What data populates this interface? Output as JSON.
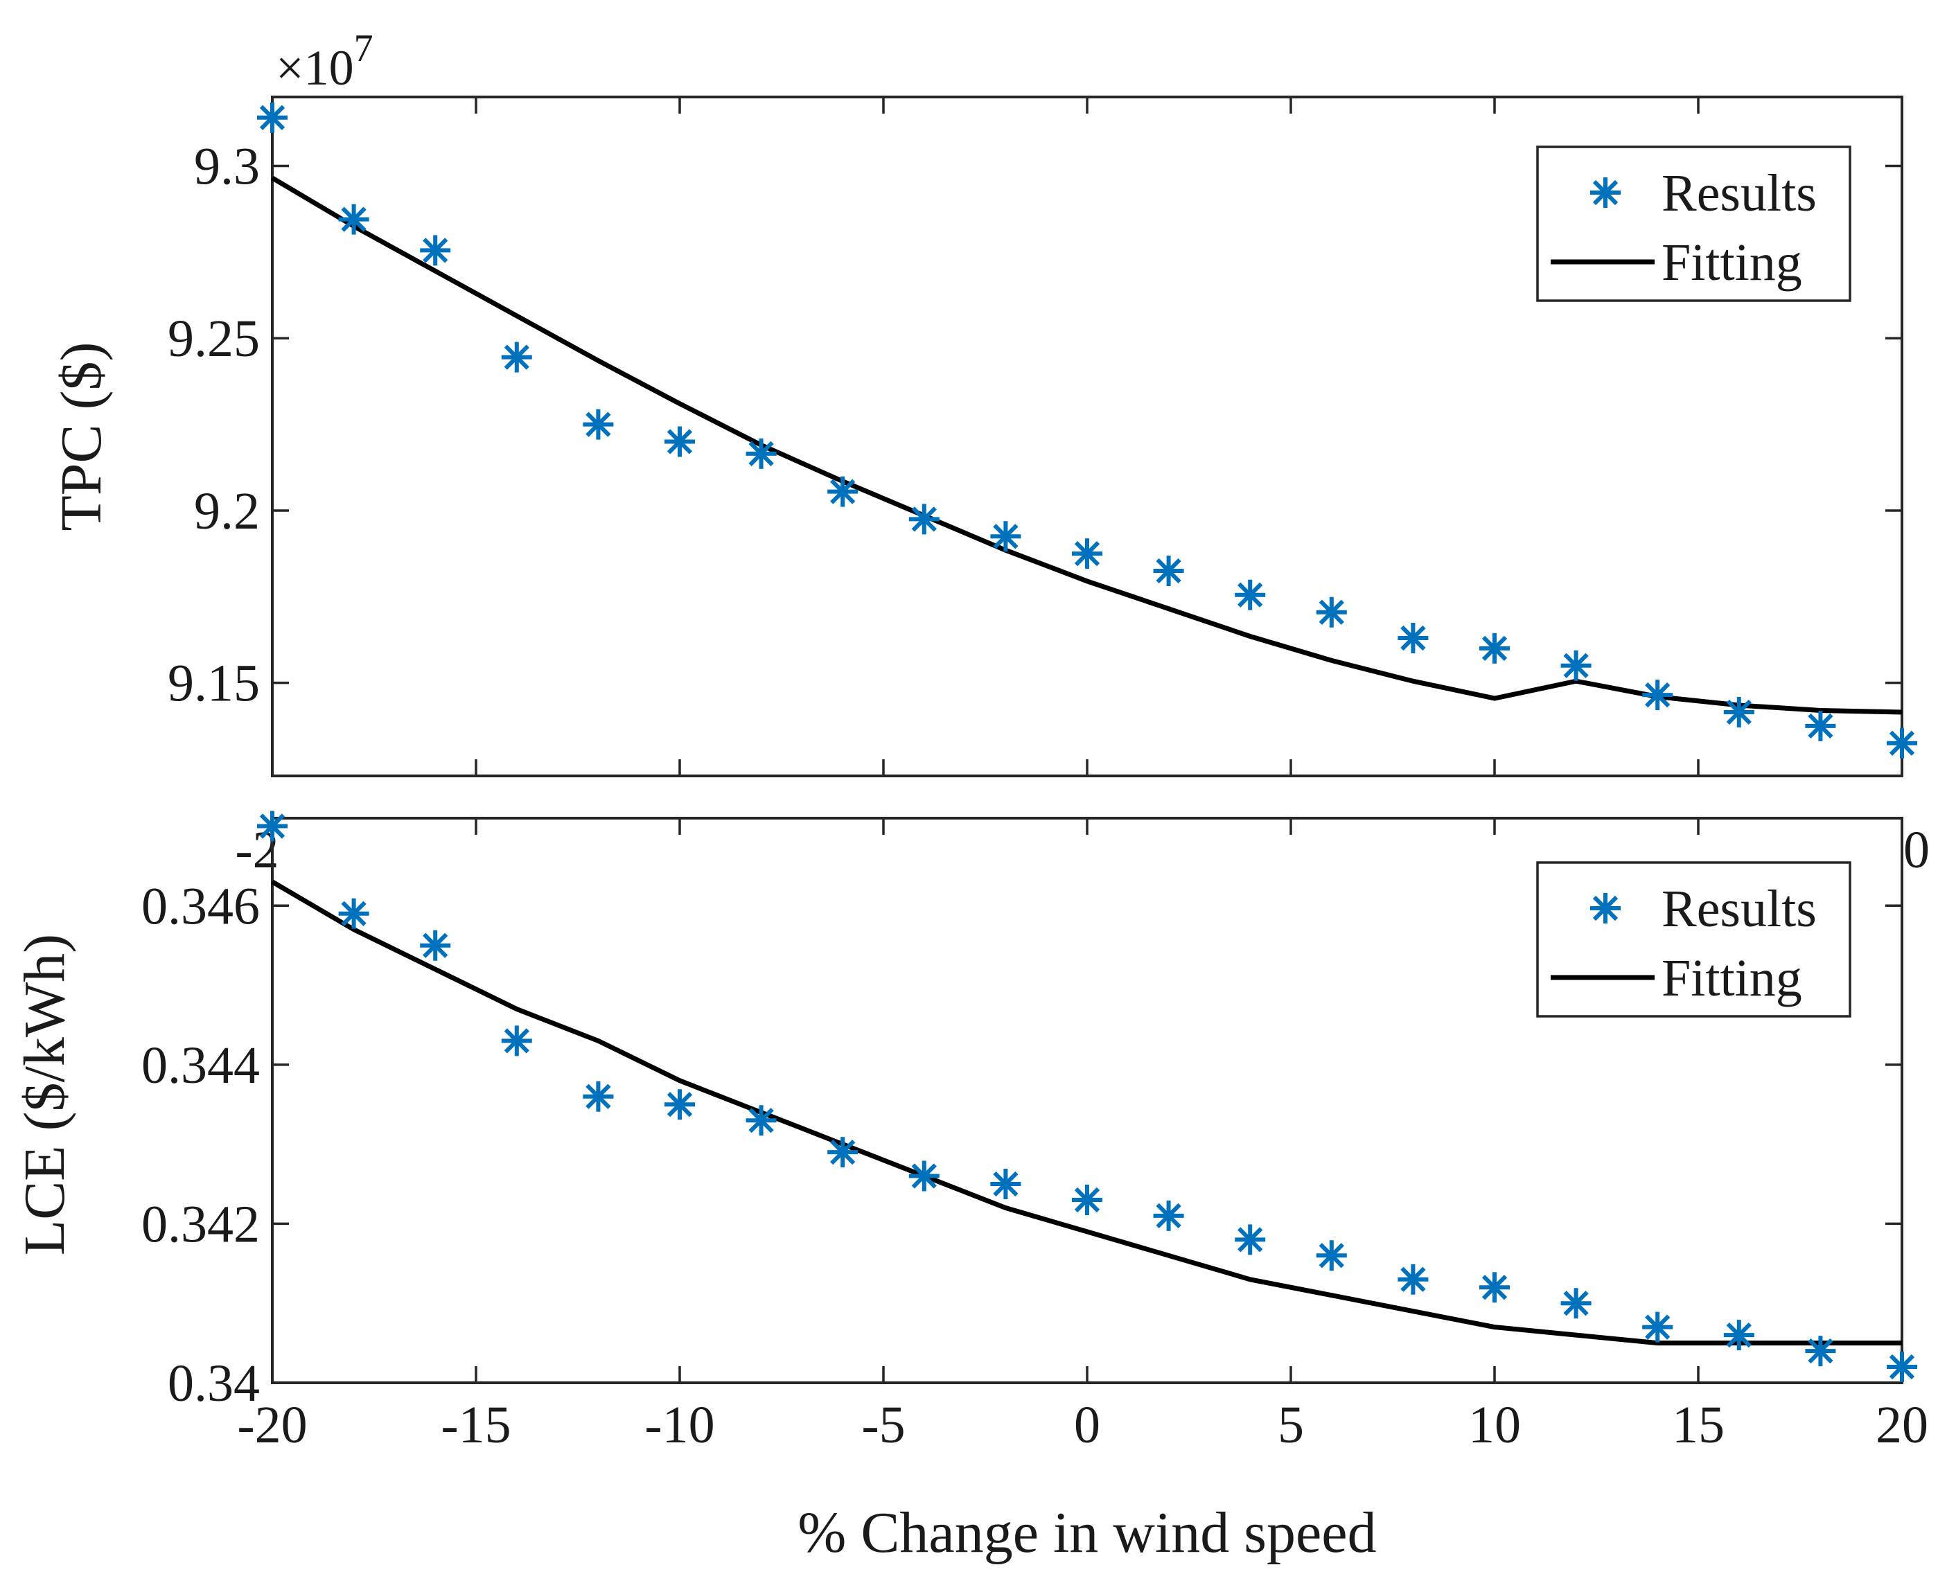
{
  "chart_data": [
    {
      "type": "scatter",
      "name": "tpc",
      "ylabel": "TPC ($)",
      "xlabel": "",
      "y_exponent_label": "×10",
      "y_exponent_power": "7",
      "xlim": [
        -20,
        20
      ],
      "ylim": [
        9.123,
        9.32
      ],
      "x_ticks": [
        -20,
        -15,
        -10,
        -5,
        0,
        5,
        10,
        15,
        20
      ],
      "y_ticks": [
        9.15,
        9.2,
        9.25,
        9.3
      ],
      "y_tick_labels": [
        "9.15",
        "9.2",
        "9.25",
        "9.3"
      ],
      "x_tick_labels_visible": [
        "-2",
        "0"
      ],
      "x": [
        -20,
        -18,
        -16,
        -14,
        -12,
        -10,
        -8,
        -6,
        -4,
        -2,
        0,
        2,
        4,
        6,
        8,
        10,
        12,
        14,
        16,
        18,
        20
      ],
      "series": [
        {
          "name": "Results",
          "values": [
            9.314,
            9.2845,
            9.2755,
            9.2445,
            9.225,
            9.22,
            9.2165,
            9.2055,
            9.1975,
            9.1925,
            9.1875,
            9.1825,
            9.1755,
            9.1705,
            9.163,
            9.16,
            9.155,
            9.1465,
            9.1415,
            9.1375,
            9.1325
          ]
        },
        {
          "name": "Fitting",
          "values": [
            9.2965,
            9.2825,
            9.2695,
            9.2565,
            9.2435,
            9.231,
            9.219,
            9.2085,
            9.1985,
            9.1885,
            9.1795,
            9.1715,
            9.1635,
            9.1565,
            9.1505,
            9.1455,
            9.1505,
            9.146,
            9.1435,
            9.142,
            9.1415
          ]
        }
      ],
      "legend": [
        "Results",
        "Fitting"
      ],
      "legend_position": "top-right"
    },
    {
      "type": "scatter",
      "name": "lce",
      "ylabel": "LCE ($/kWh)",
      "xlabel": "% Change in wind speed",
      "xlim": [
        -20,
        20
      ],
      "ylim": [
        0.34,
        0.3471
      ],
      "x_ticks": [
        -20,
        -15,
        -10,
        -5,
        0,
        5,
        10,
        15,
        20
      ],
      "x_tick_labels": [
        "-20",
        "-15",
        "-10",
        "-5",
        "0",
        "5",
        "10",
        "15",
        "20"
      ],
      "y_ticks": [
        0.34,
        0.342,
        0.344,
        0.346
      ],
      "y_tick_labels": [
        "0.34",
        "0.342",
        "0.344",
        "0.346"
      ],
      "x": [
        -20,
        -18,
        -16,
        -14,
        -12,
        -10,
        -8,
        -6,
        -4,
        -2,
        0,
        2,
        4,
        6,
        8,
        10,
        12,
        14,
        16,
        18,
        20
      ],
      "series": [
        {
          "name": "Results",
          "values": [
            0.347,
            0.3459,
            0.3455,
            0.3443,
            0.3436,
            0.3435,
            0.3433,
            0.3429,
            0.3426,
            0.3425,
            0.3423,
            0.3421,
            0.3418,
            0.3416,
            0.3413,
            0.3412,
            0.341,
            0.3407,
            0.3406,
            0.3404,
            0.3402
          ]
        },
        {
          "name": "Fitting",
          "values": [
            0.3463,
            0.3457,
            0.3452,
            0.3447,
            0.3443,
            0.3438,
            0.3434,
            0.343,
            0.3426,
            0.3422,
            0.3419,
            0.3416,
            0.3413,
            0.3411,
            0.3409,
            0.3407,
            0.3406,
            0.3405,
            0.3405,
            0.3405,
            0.3405
          ]
        }
      ],
      "legend": [
        "Results",
        "Fitting"
      ],
      "legend_position": "top-right"
    }
  ],
  "colors": {
    "results": "#0072bd",
    "fitting": "#000000",
    "axes": "#262626"
  }
}
